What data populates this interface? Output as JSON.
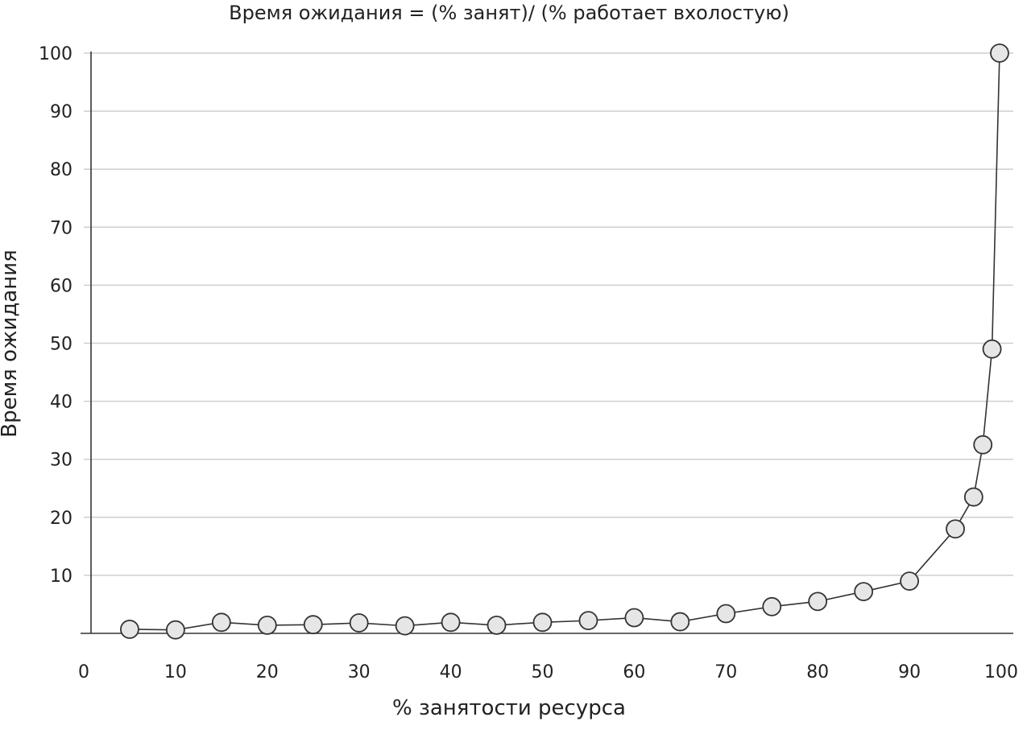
{
  "chart_data": {
    "type": "line",
    "title": "Время ожидания = (% занят)/ (% работает вхолостую)",
    "xlabel": "% занятости ресурса",
    "ylabel": "Время ожидания",
    "xlim": [
      0,
      100
    ],
    "ylim": [
      0,
      100
    ],
    "x_ticks": [
      "0",
      "10",
      "20",
      "30",
      "40",
      "50",
      "60",
      "70",
      "80",
      "90",
      "100"
    ],
    "y_ticks": [
      "10",
      "20",
      "30",
      "40",
      "50",
      "60",
      "70",
      "80",
      "90",
      "100"
    ],
    "grid": "horizontal",
    "series": [
      {
        "x": [
          5,
          10,
          15,
          20,
          25,
          30,
          35,
          40,
          45,
          50,
          55,
          60,
          65,
          70,
          75,
          80,
          85,
          90,
          95,
          97,
          98,
          99
        ],
        "y": [
          0.7,
          0.6,
          1.9,
          1.4,
          1.5,
          1.8,
          1.3,
          1.9,
          1.4,
          1.9,
          2.2,
          2.7,
          2.0,
          3.4,
          4.6,
          5.5,
          7.2,
          9.0,
          18.0,
          23.5,
          32.5,
          49.0
        ],
        "values_note": ""
      }
    ],
    "extra_point": {
      "x": 100,
      "y": 100
    }
  }
}
